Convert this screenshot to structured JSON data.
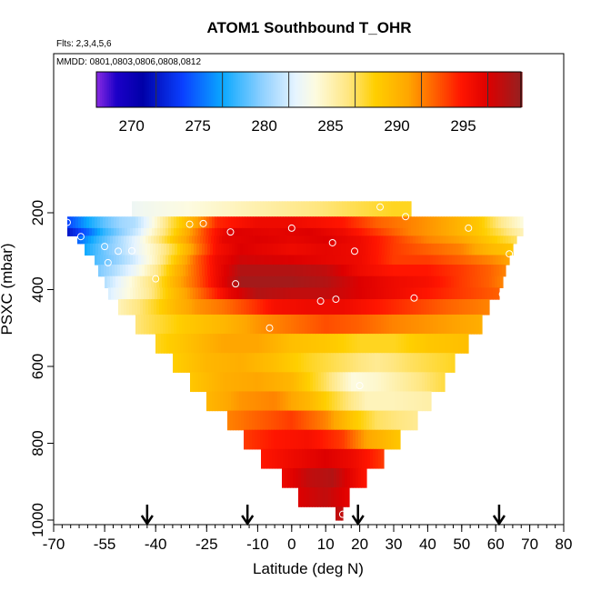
{
  "chart_data": {
    "type": "heatmap",
    "title": "ATOM1 Southbound T_OHR",
    "flights_note": "Flts: 2,3,4,5,6",
    "dates_note": "MMDD: 0801,0803,0806,0808,0812",
    "xlabel": "Latitude (deg N)",
    "ylabel": "PSXC (mbar)",
    "xlim": [
      -70,
      80
    ],
    "ylim": [
      1000,
      100
    ],
    "x_ticks": [
      -70,
      -55,
      -40,
      -25,
      -10,
      0,
      10,
      20,
      30,
      40,
      50,
      60,
      70,
      80
    ],
    "x_tick_labels": [
      "-70",
      "-55",
      "-40",
      "-25",
      "-10",
      "0",
      "10",
      "20",
      "30",
      "40",
      "50",
      "60",
      "70",
      "80"
    ],
    "x_minor_step": 2.5,
    "y_ticks": [
      200,
      400,
      600,
      800,
      1000
    ],
    "y_tick_labels": [
      "200",
      "400",
      "600",
      "800",
      "1000"
    ],
    "colorbar": {
      "range": [
        265.5,
        297.5
      ],
      "ticks": [
        270,
        275,
        280,
        285,
        290,
        295
      ],
      "tick_labels": [
        "270",
        "275",
        "280",
        "285",
        "290",
        "295"
      ],
      "colors": [
        {
          "v": 265.5,
          "c": "#8a2be2"
        },
        {
          "v": 267.0,
          "c": "#1c00c8"
        },
        {
          "v": 269.0,
          "c": "#0000a8"
        },
        {
          "v": 272.0,
          "c": "#0a40ff"
        },
        {
          "v": 275.0,
          "c": "#0aa8ff"
        },
        {
          "v": 278.0,
          "c": "#8fd0ff"
        },
        {
          "v": 280.5,
          "c": "#e6f4ff"
        },
        {
          "v": 282.0,
          "c": "#fdfbe0"
        },
        {
          "v": 284.5,
          "c": "#ffe680"
        },
        {
          "v": 286.5,
          "c": "#ffcf00"
        },
        {
          "v": 289.0,
          "c": "#ffa600"
        },
        {
          "v": 291.0,
          "c": "#ff6000"
        },
        {
          "v": 293.0,
          "c": "#ff1500"
        },
        {
          "v": 295.0,
          "c": "#dd0000"
        },
        {
          "v": 297.5,
          "c": "#962020"
        }
      ]
    },
    "bands": [
      {
        "p1": 170,
        "p2": 210,
        "x1": -47,
        "x2": 35,
        "stops": [
          [
            -47,
            281
          ],
          [
            -40,
            281.5
          ],
          [
            -30,
            282
          ],
          [
            -15,
            283
          ],
          [
            0,
            284
          ],
          [
            15,
            285
          ],
          [
            30,
            286
          ],
          [
            35,
            286
          ]
        ]
      },
      {
        "p1": 210,
        "p2": 240,
        "x1": -66,
        "x2": 68,
        "stops": [
          [
            -66,
            272
          ],
          [
            -60,
            275
          ],
          [
            -55,
            277
          ],
          [
            -50,
            278.5
          ],
          [
            -46,
            279
          ],
          [
            -42,
            281
          ],
          [
            -36,
            285
          ],
          [
            -30,
            288
          ],
          [
            -26,
            290
          ],
          [
            -22,
            292.5
          ],
          [
            -10,
            294
          ],
          [
            0,
            294
          ],
          [
            15,
            293
          ],
          [
            25,
            291
          ],
          [
            35,
            290
          ],
          [
            45,
            289
          ],
          [
            55,
            287
          ],
          [
            62,
            284
          ],
          [
            68,
            282
          ]
        ]
      },
      {
        "p1": 240,
        "p2": 260,
        "x1": -66,
        "x2": 68,
        "stops": [
          [
            -66,
            270
          ],
          [
            -60,
            273
          ],
          [
            -55,
            276
          ],
          [
            -50,
            278
          ],
          [
            -45,
            280
          ],
          [
            -40,
            283
          ],
          [
            -35,
            286
          ],
          [
            -30,
            289
          ],
          [
            -25,
            292
          ],
          [
            -18,
            295
          ],
          [
            -5,
            294.5
          ],
          [
            5,
            295
          ],
          [
            15,
            294
          ],
          [
            25,
            292
          ],
          [
            35,
            290
          ],
          [
            45,
            289
          ],
          [
            55,
            287
          ],
          [
            62,
            285
          ],
          [
            68,
            283
          ]
        ]
      },
      {
        "p1": 260,
        "p2": 280,
        "x1": -63,
        "x2": 66,
        "stops": [
          [
            -63,
            273
          ],
          [
            -57,
            276
          ],
          [
            -50,
            279
          ],
          [
            -45,
            281
          ],
          [
            -40,
            284
          ],
          [
            -33,
            288
          ],
          [
            -27,
            291
          ],
          [
            -20,
            294.5
          ],
          [
            -10,
            295
          ],
          [
            0,
            294.5
          ],
          [
            10,
            295
          ],
          [
            20,
            294
          ],
          [
            30,
            292
          ],
          [
            40,
            290
          ],
          [
            50,
            289
          ],
          [
            58,
            287
          ],
          [
            66,
            285
          ]
        ]
      },
      {
        "p1": 280,
        "p2": 310,
        "x1": -61,
        "x2": 65,
        "stops": [
          [
            -61,
            275
          ],
          [
            -56,
            277
          ],
          [
            -50,
            279
          ],
          [
            -45,
            281
          ],
          [
            -40,
            283
          ],
          [
            -34,
            286
          ],
          [
            -28,
            290
          ],
          [
            -22,
            293.5
          ],
          [
            -15,
            295
          ],
          [
            0,
            294
          ],
          [
            10,
            294.5
          ],
          [
            20,
            294
          ],
          [
            30,
            292
          ],
          [
            40,
            291
          ],
          [
            50,
            290
          ],
          [
            58,
            288
          ],
          [
            65,
            287
          ]
        ]
      },
      {
        "p1": 310,
        "p2": 335,
        "x1": -58,
        "x2": 64,
        "stops": [
          [
            -58,
            276.5
          ],
          [
            -52,
            278
          ],
          [
            -46,
            280
          ],
          [
            -40,
            283
          ],
          [
            -34,
            287
          ],
          [
            -28,
            291
          ],
          [
            -22,
            294
          ],
          [
            -15,
            295.5
          ],
          [
            0,
            295
          ],
          [
            10,
            294.5
          ],
          [
            20,
            294
          ],
          [
            30,
            292
          ],
          [
            40,
            292
          ],
          [
            50,
            291
          ],
          [
            58,
            290
          ],
          [
            64,
            289
          ]
        ]
      },
      {
        "p1": 335,
        "p2": 365,
        "x1": -57,
        "x2": 63,
        "stops": [
          [
            -57,
            277.5
          ],
          [
            -52,
            279
          ],
          [
            -46,
            281
          ],
          [
            -40,
            284
          ],
          [
            -34,
            288
          ],
          [
            -28,
            291
          ],
          [
            -22,
            294
          ],
          [
            -15,
            296.5
          ],
          [
            0,
            296.5
          ],
          [
            10,
            296
          ],
          [
            20,
            294
          ],
          [
            30,
            293
          ],
          [
            40,
            293
          ],
          [
            50,
            292
          ],
          [
            58,
            291
          ],
          [
            63,
            290
          ]
        ]
      },
      {
        "p1": 365,
        "p2": 395,
        "x1": -55,
        "x2": 62,
        "stops": [
          [
            -55,
            279
          ],
          [
            -50,
            281
          ],
          [
            -45,
            283
          ],
          [
            -40,
            285
          ],
          [
            -34,
            288.5
          ],
          [
            -28,
            291
          ],
          [
            -22,
            294
          ],
          [
            -15,
            297
          ],
          [
            0,
            297
          ],
          [
            10,
            296.5
          ],
          [
            20,
            295
          ],
          [
            30,
            294
          ],
          [
            40,
            293.5
          ],
          [
            50,
            292
          ],
          [
            58,
            291
          ],
          [
            62,
            290
          ]
        ]
      },
      {
        "p1": 395,
        "p2": 425,
        "x1": -54,
        "x2": 61,
        "stops": [
          [
            -54,
            280
          ],
          [
            -48,
            282
          ],
          [
            -42,
            284
          ],
          [
            -36,
            287
          ],
          [
            -30,
            289.5
          ],
          [
            -24,
            292
          ],
          [
            -18,
            294.5
          ],
          [
            -10,
            296.5
          ],
          [
            0,
            296
          ],
          [
            10,
            296
          ],
          [
            20,
            295
          ],
          [
            30,
            294
          ],
          [
            40,
            293
          ],
          [
            50,
            292
          ],
          [
            61,
            291
          ]
        ]
      },
      {
        "p1": 425,
        "p2": 465,
        "x1": -51,
        "x2": 58,
        "stops": [
          [
            -51,
            283
          ],
          [
            -45,
            284.5
          ],
          [
            -40,
            286
          ],
          [
            -34,
            288
          ],
          [
            -28,
            289.5
          ],
          [
            -20,
            290.5
          ],
          [
            -12,
            292
          ],
          [
            -5,
            293.5
          ],
          [
            5,
            294
          ],
          [
            15,
            294
          ],
          [
            25,
            293
          ],
          [
            35,
            292
          ],
          [
            45,
            291
          ],
          [
            58,
            290
          ]
        ]
      },
      {
        "p1": 465,
        "p2": 515,
        "x1": -46,
        "x2": 56,
        "stops": [
          [
            -46,
            284.5
          ],
          [
            -40,
            285.5
          ],
          [
            -30,
            287
          ],
          [
            -20,
            288
          ],
          [
            -10,
            289.5
          ],
          [
            0,
            290.5
          ],
          [
            10,
            291.5
          ],
          [
            20,
            291
          ],
          [
            30,
            290
          ],
          [
            40,
            289.5
          ],
          [
            50,
            289
          ],
          [
            56,
            288.5
          ]
        ]
      },
      {
        "p1": 515,
        "p2": 565,
        "x1": -40,
        "x2": 52,
        "stops": [
          [
            -40,
            286
          ],
          [
            -30,
            287.5
          ],
          [
            -20,
            289
          ],
          [
            -10,
            289
          ],
          [
            0,
            287.5
          ],
          [
            10,
            287
          ],
          [
            20,
            286
          ],
          [
            30,
            286
          ],
          [
            40,
            287
          ],
          [
            52,
            287.5
          ]
        ]
      },
      {
        "p1": 565,
        "p2": 615,
        "x1": -35,
        "x2": 48,
        "stops": [
          [
            -35,
            286.5
          ],
          [
            -25,
            288
          ],
          [
            -15,
            288.5
          ],
          [
            -5,
            287.5
          ],
          [
            5,
            286
          ],
          [
            15,
            285
          ],
          [
            25,
            284
          ],
          [
            35,
            285
          ],
          [
            48,
            286
          ]
        ]
      },
      {
        "p1": 615,
        "p2": 665,
        "x1": -30,
        "x2": 45,
        "stops": [
          [
            -30,
            287
          ],
          [
            -20,
            288.5
          ],
          [
            -10,
            289
          ],
          [
            0,
            288
          ],
          [
            10,
            285
          ],
          [
            18,
            282
          ],
          [
            25,
            282.5
          ],
          [
            35,
            284
          ],
          [
            45,
            285.5
          ]
        ]
      },
      {
        "p1": 665,
        "p2": 715,
        "x1": -25,
        "x2": 41,
        "stops": [
          [
            -25,
            288
          ],
          [
            -15,
            289.5
          ],
          [
            -5,
            290
          ],
          [
            5,
            288
          ],
          [
            15,
            285
          ],
          [
            22,
            283
          ],
          [
            30,
            283
          ],
          [
            41,
            283.5
          ]
        ]
      },
      {
        "p1": 715,
        "p2": 765,
        "x1": -19,
        "x2": 37,
        "stops": [
          [
            -19,
            290
          ],
          [
            -10,
            291
          ],
          [
            0,
            292
          ],
          [
            10,
            290
          ],
          [
            18,
            287
          ],
          [
            25,
            285
          ],
          [
            37,
            284
          ]
        ]
      },
      {
        "p1": 765,
        "p2": 815,
        "x1": -14,
        "x2": 32,
        "stops": [
          [
            -14,
            292
          ],
          [
            -5,
            293
          ],
          [
            5,
            293.5
          ],
          [
            15,
            292
          ],
          [
            22,
            289
          ],
          [
            32,
            287
          ]
        ]
      },
      {
        "p1": 815,
        "p2": 865,
        "x1": -9,
        "x2": 27,
        "stops": [
          [
            -9,
            293
          ],
          [
            0,
            294
          ],
          [
            10,
            295
          ],
          [
            18,
            294
          ],
          [
            27,
            292
          ]
        ]
      },
      {
        "p1": 865,
        "p2": 915,
        "x1": -3,
        "x2": 22,
        "stops": [
          [
            -3,
            294
          ],
          [
            5,
            296
          ],
          [
            12,
            296.5
          ],
          [
            22,
            293
          ]
        ]
      },
      {
        "p1": 915,
        "p2": 965,
        "x1": 2,
        "x2": 17,
        "stops": [
          [
            2,
            295
          ],
          [
            10,
            296
          ],
          [
            17,
            294.5
          ]
        ]
      },
      {
        "p1": 965,
        "p2": 1000,
        "x1": 13,
        "x2": 15,
        "stops": [
          [
            13,
            296
          ],
          [
            15,
            296
          ]
        ]
      }
    ],
    "open_circles": [
      {
        "lat": 26,
        "p": 185
      },
      {
        "lat": 33.5,
        "p": 210
      },
      {
        "lat": -66,
        "p": 225
      },
      {
        "lat": -30,
        "p": 230
      },
      {
        "lat": -26,
        "p": 228
      },
      {
        "lat": 0,
        "p": 240
      },
      {
        "lat": 52,
        "p": 240
      },
      {
        "lat": -62,
        "p": 262
      },
      {
        "lat": -18,
        "p": 250
      },
      {
        "lat": 12,
        "p": 278
      },
      {
        "lat": -55,
        "p": 288
      },
      {
        "lat": -51,
        "p": 300
      },
      {
        "lat": -47,
        "p": 299
      },
      {
        "lat": 18.5,
        "p": 300
      },
      {
        "lat": 64,
        "p": 307
      },
      {
        "lat": -54,
        "p": 330
      },
      {
        "lat": -40,
        "p": 372
      },
      {
        "lat": -16.5,
        "p": 385
      },
      {
        "lat": 62,
        "p": 412
      },
      {
        "lat": 36,
        "p": 422
      },
      {
        "lat": 13,
        "p": 425
      },
      {
        "lat": 8.5,
        "p": 430
      },
      {
        "lat": -6.5,
        "p": 500
      },
      {
        "lat": 20,
        "p": 650
      },
      {
        "lat": 15,
        "p": 985
      }
    ],
    "flight_markers_lat": [
      -42.5,
      -13,
      19.5,
      61
    ]
  }
}
